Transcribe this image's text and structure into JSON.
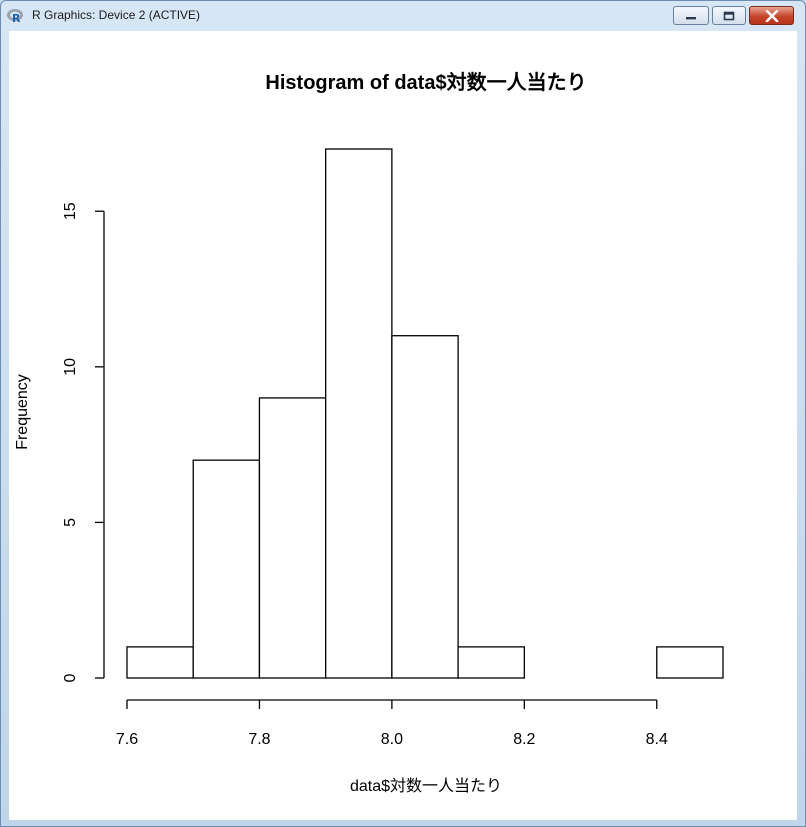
{
  "window": {
    "title": "R Graphics: Device 2 (ACTIVE)",
    "icons": {
      "app": "r-logo-icon",
      "minimize": "minimize-icon",
      "maximize": "maximize-icon",
      "close": "close-icon"
    }
  },
  "chart_data": {
    "type": "bar",
    "title": "Histogram of data$対数一人当たり",
    "xlabel": "data$対数一人当たり",
    "ylabel": "Frequency",
    "bins": [
      {
        "start": 7.6,
        "end": 7.7,
        "count": 1
      },
      {
        "start": 7.7,
        "end": 7.8,
        "count": 7
      },
      {
        "start": 7.8,
        "end": 7.9,
        "count": 9
      },
      {
        "start": 7.9,
        "end": 8.0,
        "count": 17
      },
      {
        "start": 8.0,
        "end": 8.1,
        "count": 11
      },
      {
        "start": 8.1,
        "end": 8.2,
        "count": 1
      },
      {
        "start": 8.2,
        "end": 8.3,
        "count": 0
      },
      {
        "start": 8.3,
        "end": 8.4,
        "count": 0
      },
      {
        "start": 8.4,
        "end": 8.5,
        "count": 1
      }
    ],
    "xticks": [
      7.6,
      7.8,
      8.0,
      8.2,
      8.4
    ],
    "xtick_labels": [
      "7.6",
      "7.8",
      "8.0",
      "8.2",
      "8.4"
    ],
    "yticks": [
      0,
      5,
      10,
      15
    ],
    "ytick_labels": [
      "0",
      "5",
      "10",
      "15"
    ],
    "xlim": [
      7.6,
      8.5
    ],
    "ylim": [
      0,
      17
    ],
    "grid": false,
    "colors": {
      "fill": "#ffffff",
      "stroke": "#000000"
    }
  }
}
